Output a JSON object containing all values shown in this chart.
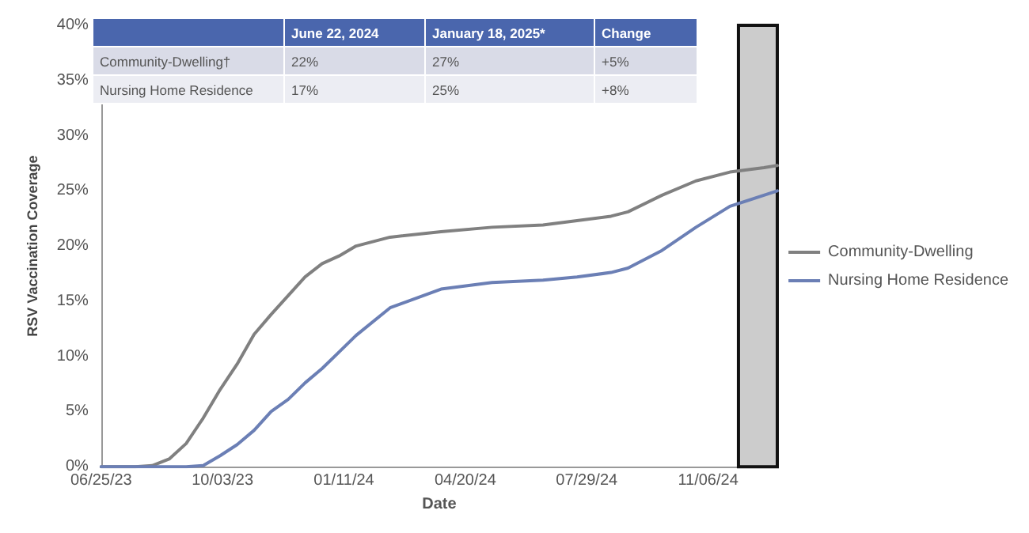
{
  "chart_data": {
    "type": "line",
    "xlabel": "Date",
    "ylabel": "RSV Vaccination Coverage",
    "x": [
      "2023-06-25",
      "2023-07-23",
      "2023-08-06",
      "2023-08-20",
      "2023-09-03",
      "2023-09-17",
      "2023-10-01",
      "2023-10-15",
      "2023-10-29",
      "2023-11-12",
      "2023-11-26",
      "2023-12-10",
      "2023-12-24",
      "2024-01-07",
      "2024-01-21",
      "2024-02-18",
      "2024-03-31",
      "2024-05-12",
      "2024-06-23",
      "2024-07-21",
      "2024-08-18",
      "2024-09-01",
      "2024-09-29",
      "2024-10-27",
      "2024-11-24",
      "2024-12-22",
      "2025-01-02"
    ],
    "series": [
      {
        "name": "Community-Dwelling",
        "color": "#808080",
        "values": [
          0,
          0,
          0.1,
          0.7,
          2.1,
          4.4,
          7.0,
          9.3,
          12.0,
          13.8,
          15.5,
          17.2,
          18.4,
          19.1,
          20.0,
          20.8,
          21.3,
          21.7,
          21.9,
          22.3,
          22.7,
          23.1,
          24.6,
          25.9,
          26.7,
          27.1,
          27.3
        ]
      },
      {
        "name": "Nursing Home Residence",
        "color": "#6b7fb5",
        "values": [
          0,
          0,
          0,
          0,
          0,
          0.1,
          1.0,
          2.0,
          3.3,
          5.0,
          6.1,
          7.6,
          8.9,
          10.4,
          11.9,
          14.4,
          16.1,
          16.7,
          16.9,
          17.2,
          17.6,
          18.0,
          19.6,
          21.7,
          23.6,
          24.6,
          25.0
        ]
      }
    ],
    "xlim": [
      "2023-06-25",
      "2025-01-02"
    ],
    "xticks": [
      {
        "value": "2023-06-25",
        "label": "06/25/23"
      },
      {
        "value": "2023-10-03",
        "label": "10/03/23"
      },
      {
        "value": "2024-01-11",
        "label": "01/11/24"
      },
      {
        "value": "2024-04-20",
        "label": "04/20/24"
      },
      {
        "value": "2024-07-29",
        "label": "07/29/24"
      },
      {
        "value": "2024-11-06",
        "label": "11/06/24"
      }
    ],
    "ylim": [
      0,
      40
    ],
    "yticks": [
      {
        "value": 0,
        "label": "0%"
      },
      {
        "value": 5,
        "label": "5%"
      },
      {
        "value": 10,
        "label": "10%"
      },
      {
        "value": 15,
        "label": "15%"
      },
      {
        "value": 20,
        "label": "20%"
      },
      {
        "value": 25,
        "label": "25%"
      },
      {
        "value": 30,
        "label": "30%"
      },
      {
        "value": 35,
        "label": "35%"
      },
      {
        "value": 40,
        "label": "40%"
      }
    ],
    "bands": [
      {
        "axis": "x",
        "from": "2024-12-01",
        "to": "2025-01-02",
        "color": "#cccccc"
      }
    ],
    "annotations": [
      "June 22, 2024",
      "January 18, 2025*",
      "Change",
      "Community-Dwelling†",
      "22%",
      "27%",
      "+5%",
      "Nursing Home Residence",
      "17%",
      "25%",
      "+8%"
    ],
    "grid": false,
    "legend": "right",
    "marker": "none",
    "line_style": "solid"
  }
}
